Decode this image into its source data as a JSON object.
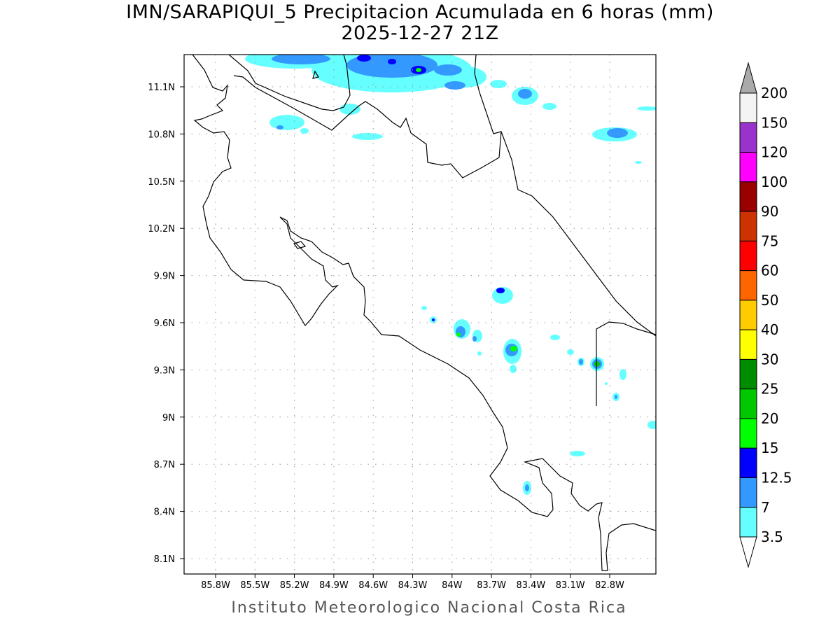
{
  "title": "IMN/SARAPIQUI_5 Precipitacion Acumulada en 6 horas (mm)",
  "subtitle": "2025-12-27 21Z",
  "footer": "Instituto Meteorologico Nacional Costa Rica",
  "map": {
    "region": "Costa Rica",
    "lon_ticks": [
      "85.8W",
      "85.5W",
      "85.2W",
      "84.9W",
      "84.6W",
      "84.3W",
      "84W",
      "83.7W",
      "83.4W",
      "83.1W",
      "82.8W"
    ],
    "lat_ticks": [
      "11.1N",
      "10.8N",
      "10.5N",
      "10.2N",
      "9.9N",
      "9.6N",
      "9.3N",
      "9N",
      "8.7N",
      "8.4N",
      "8.1N"
    ],
    "grid": "dotted"
  },
  "colorbar": {
    "labels": [
      "200",
      "150",
      "120",
      "100",
      "90",
      "75",
      "60",
      "50",
      "40",
      "30",
      "25",
      "20",
      "15",
      "12.5",
      "7",
      "3.5"
    ],
    "colors": [
      "#f4f4f4",
      "#9933cc",
      "#ff00ff",
      "#990000",
      "#cc3300",
      "#ff0000",
      "#ff6600",
      "#ffcc00",
      "#ffff00",
      "#008c00",
      "#00c800",
      "#00ff00",
      "#0000ff",
      "#3399ff",
      "#66ffff"
    ],
    "over_color": "#aaaaaa",
    "under_color": "#ffffff"
  }
}
